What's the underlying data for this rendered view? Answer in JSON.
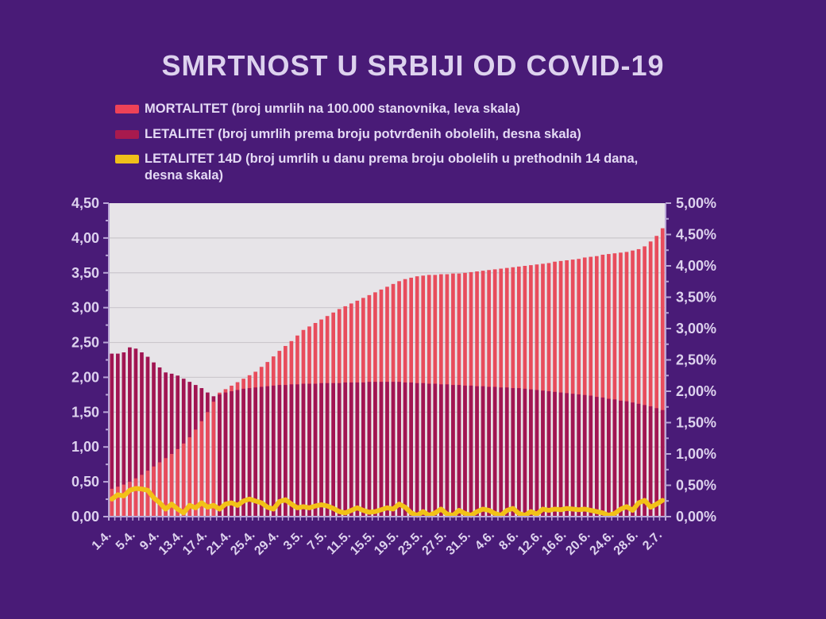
{
  "title": "SMRTNOST U SRBIJI OD COVID-19",
  "legend": {
    "items": [
      {
        "label": "MORTALITET (broj umrlih na 100.000 stanovnika, leva skala)",
        "color": "#ee4257"
      },
      {
        "label": "LETALITET (broj umrlih prema broju potvrđenih obolelih, desna skala)",
        "color": "#a81a4e"
      },
      {
        "label": "LETALITET 14D (broj umrlih u danu prema broju obolelih u prethodnih 14 dana, desna skala)",
        "color": "#f0c01a"
      }
    ]
  },
  "colors": {
    "background": "#491b77",
    "plot_background": "#e7e4e8",
    "gridline": "#cbc7cc",
    "axis": "#b9a6d6",
    "text": "#ddd2ee",
    "mortalitet_bar": "#e84c5c",
    "letalitet_bar": "#a11552",
    "letalitet14d_line": "#f2c117"
  },
  "chart_data": {
    "type": "bar",
    "subtype": "overlapped bars with line overlay, dual axis",
    "grid": "horizontal",
    "legend_position": "top-left",
    "x_labels": [
      "1.4.",
      "5.4.",
      "9.4.",
      "13.4.",
      "17.4.",
      "21.4.",
      "25.4.",
      "29.4.",
      "3.5.",
      "7.5.",
      "11.5.",
      "15.5.",
      "19.5.",
      "23.5.",
      "27.5.",
      "31.5.",
      "4.6.",
      "8.6.",
      "12.6.",
      "16.6.",
      "20.6.",
      "24.6.",
      "28.6.",
      "2.7."
    ],
    "label_every_n_days": 4,
    "n_days": 93,
    "left_axis": {
      "title": "MORTALITET (deaths per 100,000)",
      "min": 0,
      "max": 4.5,
      "tick_labels": [
        "0,00",
        "0,50",
        "1,00",
        "1,50",
        "2,00",
        "2,50",
        "3,00",
        "3,50",
        "4,00",
        "4,50"
      ]
    },
    "right_axis": {
      "title": "LETALITET (%)",
      "min": 0,
      "max": 5.0,
      "tick_labels": [
        "0,00%",
        "0,50%",
        "1,00%",
        "1,50%",
        "2,00%",
        "2,50%",
        "3,00%",
        "3,50%",
        "4,00%",
        "4,50%",
        "5,00%"
      ]
    },
    "series": [
      {
        "name": "MORTALITET",
        "type": "bar",
        "axis": "left",
        "color": "#e84c5c",
        "values": [
          0.4,
          0.43,
          0.46,
          0.5,
          0.55,
          0.6,
          0.66,
          0.72,
          0.78,
          0.84,
          0.9,
          0.97,
          1.05,
          1.14,
          1.25,
          1.37,
          1.5,
          1.65,
          1.78,
          1.83,
          1.88,
          1.93,
          1.98,
          2.03,
          2.08,
          2.15,
          2.22,
          2.3,
          2.38,
          2.45,
          2.52,
          2.6,
          2.68,
          2.73,
          2.78,
          2.83,
          2.88,
          2.93,
          2.98,
          3.02,
          3.06,
          3.1,
          3.14,
          3.18,
          3.22,
          3.26,
          3.3,
          3.34,
          3.38,
          3.41,
          3.43,
          3.45,
          3.46,
          3.47,
          3.47,
          3.48,
          3.48,
          3.49,
          3.49,
          3.5,
          3.51,
          3.52,
          3.53,
          3.54,
          3.55,
          3.56,
          3.57,
          3.58,
          3.59,
          3.6,
          3.61,
          3.62,
          3.63,
          3.64,
          3.66,
          3.67,
          3.68,
          3.69,
          3.7,
          3.72,
          3.73,
          3.74,
          3.76,
          3.77,
          3.78,
          3.79,
          3.8,
          3.82,
          3.84,
          3.88,
          3.95,
          4.03,
          4.14
        ]
      },
      {
        "name": "LETALITET",
        "type": "bar",
        "axis": "right",
        "color": "#a11552",
        "values": [
          2.6,
          2.6,
          2.62,
          2.7,
          2.68,
          2.62,
          2.55,
          2.46,
          2.38,
          2.3,
          2.28,
          2.25,
          2.2,
          2.15,
          2.1,
          2.05,
          1.98,
          1.92,
          1.95,
          1.98,
          2.0,
          2.02,
          2.04,
          2.05,
          2.06,
          2.07,
          2.08,
          2.09,
          2.1,
          2.1,
          2.11,
          2.11,
          2.12,
          2.12,
          2.12,
          2.13,
          2.13,
          2.13,
          2.13,
          2.14,
          2.14,
          2.14,
          2.14,
          2.15,
          2.15,
          2.15,
          2.15,
          2.15,
          2.15,
          2.14,
          2.14,
          2.13,
          2.13,
          2.12,
          2.12,
          2.11,
          2.11,
          2.1,
          2.1,
          2.09,
          2.09,
          2.08,
          2.08,
          2.07,
          2.07,
          2.06,
          2.06,
          2.05,
          2.05,
          2.04,
          2.03,
          2.02,
          2.01,
          2.0,
          1.99,
          1.98,
          1.97,
          1.96,
          1.95,
          1.94,
          1.93,
          1.91,
          1.9,
          1.88,
          1.87,
          1.85,
          1.84,
          1.82,
          1.8,
          1.78,
          1.76,
          1.73,
          1.7
        ]
      },
      {
        "name": "LETALITET 14D",
        "type": "line",
        "axis": "right",
        "color": "#f2c117",
        "values": [
          0.28,
          0.35,
          0.33,
          0.42,
          0.45,
          0.44,
          0.42,
          0.3,
          0.22,
          0.12,
          0.2,
          0.12,
          0.06,
          0.18,
          0.14,
          0.22,
          0.15,
          0.18,
          0.12,
          0.2,
          0.22,
          0.18,
          0.25,
          0.28,
          0.25,
          0.22,
          0.15,
          0.12,
          0.24,
          0.27,
          0.2,
          0.14,
          0.16,
          0.14,
          0.17,
          0.19,
          0.17,
          0.13,
          0.08,
          0.06,
          0.1,
          0.14,
          0.1,
          0.07,
          0.08,
          0.11,
          0.14,
          0.12,
          0.2,
          0.15,
          0.06,
          0.02,
          0.08,
          0.02,
          0.06,
          0.12,
          0.04,
          0.02,
          0.1,
          0.05,
          0.02,
          0.08,
          0.12,
          0.1,
          0.05,
          0.02,
          0.1,
          0.13,
          0.05,
          0.02,
          0.08,
          0.04,
          0.12,
          0.1,
          0.12,
          0.11,
          0.13,
          0.12,
          0.11,
          0.12,
          0.1,
          0.08,
          0.06,
          0.02,
          0.05,
          0.12,
          0.16,
          0.1,
          0.22,
          0.26,
          0.15,
          0.2,
          0.26
        ]
      }
    ]
  }
}
